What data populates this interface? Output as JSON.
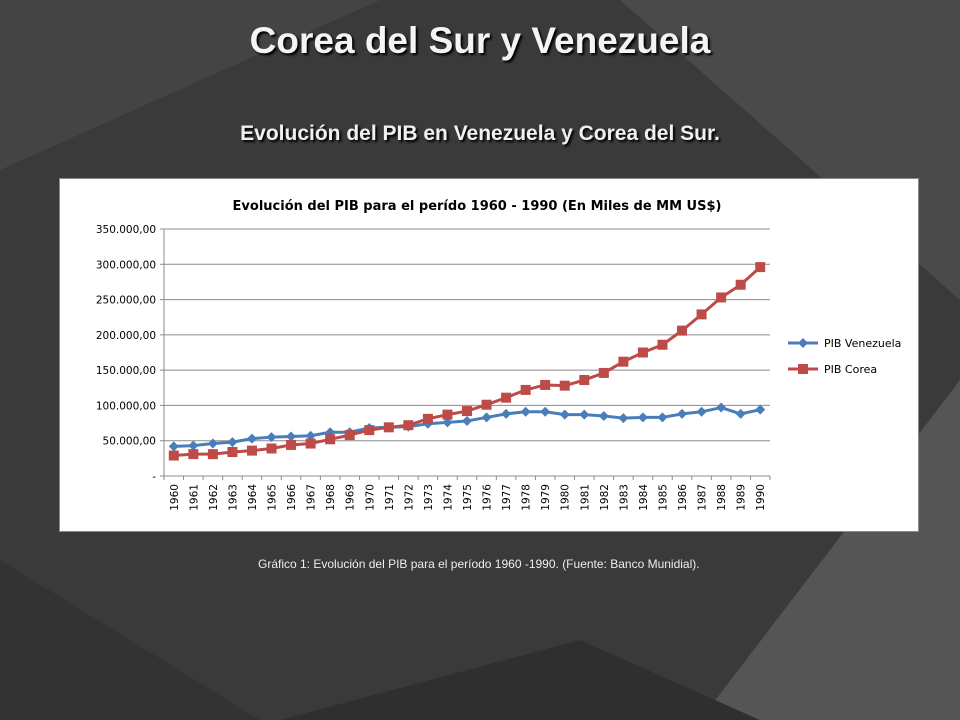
{
  "slide": {
    "title": "Corea del Sur y Venezuela",
    "subtitle": "Evolución del PIB en Venezuela y Corea del Sur.",
    "caption": "Gráfico 1: Evolución del PIB para el período 1960 -1990. (Fuente: Banco Munidial)."
  },
  "theme": {
    "background": "#3a3a3a",
    "title_color": "#f4f4f4",
    "venezuela_color": "#4a7ebb",
    "corea_color": "#be4b48"
  },
  "chart_data": {
    "type": "line",
    "title": "Evolución del PIB para el perído 1960 - 1990 (En Miles de MM US$)",
    "xlabel": "",
    "ylabel": "",
    "x": [
      "1960",
      "1961",
      "1962",
      "1963",
      "1964",
      "1965",
      "1966",
      "1967",
      "1968",
      "1969",
      "1970",
      "1971",
      "1972",
      "1973",
      "1974",
      "1975",
      "1976",
      "1977",
      "1978",
      "1979",
      "1980",
      "1981",
      "1982",
      "1983",
      "1984",
      "1985",
      "1986",
      "1987",
      "1988",
      "1989",
      "1990"
    ],
    "ylim": [
      0,
      350000
    ],
    "yticks": [
      0,
      50000,
      100000,
      150000,
      200000,
      250000,
      300000,
      350000
    ],
    "ytick_labels": [
      "-",
      "50.000,00",
      "100.000,00",
      "150.000,00",
      "200.000,00",
      "250.000,00",
      "300.000,00",
      "350.000,00"
    ],
    "grid": true,
    "legend_position": "right",
    "series": [
      {
        "name": "PIB Venezuela",
        "color": "#4a7ebb",
        "marker": "diamond",
        "values": [
          42000,
          43000,
          46000,
          48000,
          53000,
          55000,
          56000,
          57000,
          62000,
          62000,
          68000,
          69000,
          70000,
          74000,
          76000,
          78000,
          83000,
          88000,
          91000,
          91000,
          87000,
          87000,
          85000,
          82000,
          83000,
          83000,
          88000,
          91000,
          97000,
          88000,
          94000
        ]
      },
      {
        "name": "PIB Corea",
        "color": "#be4b48",
        "marker": "square",
        "values": [
          29000,
          31000,
          31000,
          34000,
          36000,
          39000,
          44000,
          46000,
          52000,
          58000,
          65000,
          69000,
          72000,
          81000,
          87000,
          92000,
          101000,
          111000,
          122000,
          129000,
          128000,
          136000,
          146000,
          162000,
          175000,
          186000,
          206000,
          229000,
          253000,
          271000,
          296000
        ]
      }
    ]
  }
}
